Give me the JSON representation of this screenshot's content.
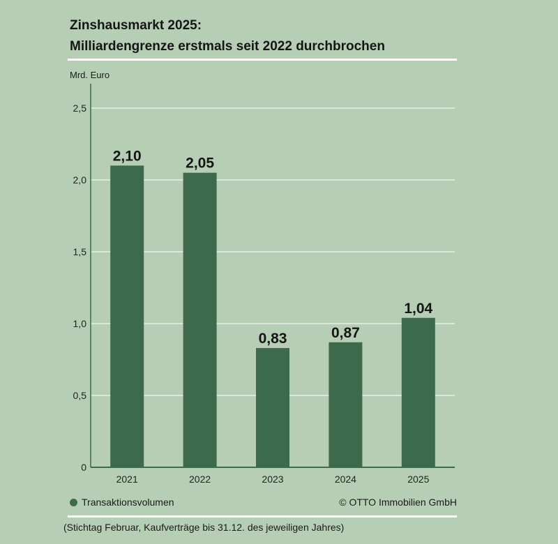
{
  "title_line1": "Zinshausmarkt 2025:",
  "title_line2": "Milliardengrenze erstmals seit 2022 durchbrochen",
  "copyright": "© OTTO Immobilien GmbH",
  "footnote": "(Stichtag Februar, Kaufverträge bis 31.12. des jeweiligen Jahres)",
  "colors": {
    "background": "#b6cfb4",
    "bar": "#3d6a4a",
    "grid": "#ffffff"
  },
  "chart_data": {
    "type": "bar",
    "title": "Zinshausmarkt 2025: Milliardengrenze erstmals seit 2022 durchbrochen",
    "ylabel": "Mrd. Euro",
    "xlabel": "",
    "categories": [
      "2021",
      "2022",
      "2023",
      "2024",
      "2025"
    ],
    "values": [
      2.1,
      2.05,
      0.83,
      0.87,
      1.04
    ],
    "value_labels": [
      "2,10",
      "2,05",
      "0,83",
      "0,87",
      "1,04"
    ],
    "yticks": [
      0,
      0.5,
      1.0,
      1.5,
      2.0,
      2.5
    ],
    "ytick_labels": [
      "0",
      "0,5",
      "1,0",
      "1,5",
      "2,0",
      "2,5"
    ],
    "ylim": [
      0,
      2.6
    ],
    "grid": true,
    "legend": [
      {
        "name": "Transaktionsvolumen",
        "color": "#3d6a4a"
      }
    ],
    "legend_placement": "bottom-left"
  }
}
